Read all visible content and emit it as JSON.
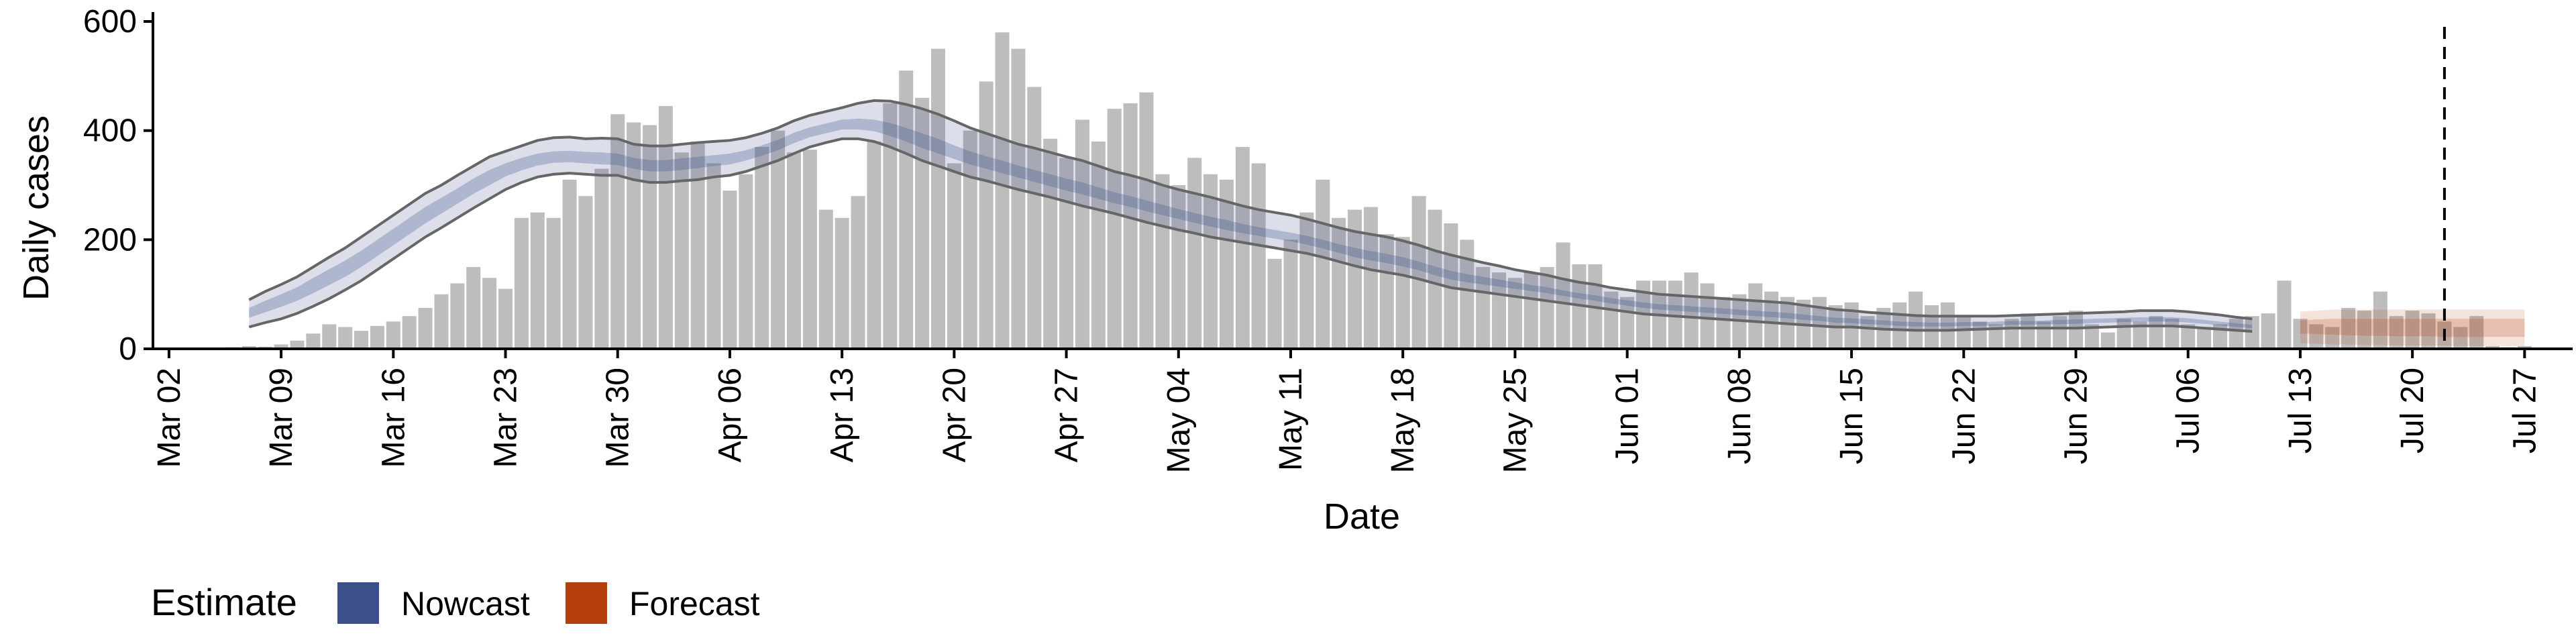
{
  "chart_data": {
    "type": "bar",
    "title": "",
    "xlabel": "Date",
    "ylabel": "Daily cases",
    "ylim": [
      0,
      600
    ],
    "yticks": [
      0,
      200,
      400,
      600
    ],
    "x_start": "2020-03-01",
    "x_end": "2020-07-30",
    "xticks": [
      {
        "date": "2020-03-02",
        "label": "Mar 02"
      },
      {
        "date": "2020-03-09",
        "label": "Mar 09"
      },
      {
        "date": "2020-03-16",
        "label": "Mar 16"
      },
      {
        "date": "2020-03-23",
        "label": "Mar 23"
      },
      {
        "date": "2020-03-30",
        "label": "Mar 30"
      },
      {
        "date": "2020-04-06",
        "label": "Apr 06"
      },
      {
        "date": "2020-04-13",
        "label": "Apr 13"
      },
      {
        "date": "2020-04-20",
        "label": "Apr 20"
      },
      {
        "date": "2020-04-27",
        "label": "Apr 27"
      },
      {
        "date": "2020-05-04",
        "label": "May 04"
      },
      {
        "date": "2020-05-11",
        "label": "May 11"
      },
      {
        "date": "2020-05-18",
        "label": "May 18"
      },
      {
        "date": "2020-05-25",
        "label": "May 25"
      },
      {
        "date": "2020-06-01",
        "label": "Jun 01"
      },
      {
        "date": "2020-06-08",
        "label": "Jun 08"
      },
      {
        "date": "2020-06-15",
        "label": "Jun 15"
      },
      {
        "date": "2020-06-22",
        "label": "Jun 22"
      },
      {
        "date": "2020-06-29",
        "label": "Jun 29"
      },
      {
        "date": "2020-07-06",
        "label": "Jul 06"
      },
      {
        "date": "2020-07-13",
        "label": "Jul 13"
      },
      {
        "date": "2020-07-20",
        "label": "Jul 20"
      },
      {
        "date": "2020-07-27",
        "label": "Jul 27"
      }
    ],
    "bars": {
      "first_date": "2020-03-04",
      "color": "#bdbdbd",
      "values": [
        2,
        1,
        3,
        5,
        4,
        8,
        15,
        28,
        45,
        40,
        33,
        42,
        50,
        60,
        75,
        100,
        120,
        150,
        130,
        110,
        240,
        250,
        240,
        310,
        280,
        330,
        430,
        415,
        410,
        445,
        360,
        380,
        340,
        290,
        320,
        370,
        400,
        360,
        365,
        255,
        240,
        280,
        380,
        450,
        510,
        460,
        550,
        340,
        400,
        490,
        580,
        550,
        480,
        385,
        350,
        420,
        380,
        440,
        450,
        470,
        320,
        300,
        350,
        320,
        310,
        370,
        340,
        165,
        200,
        250,
        310,
        240,
        255,
        260,
        210,
        205,
        280,
        255,
        230,
        200,
        150,
        140,
        130,
        140,
        150,
        195,
        155,
        155,
        105,
        95,
        125,
        125,
        125,
        140,
        120,
        95,
        100,
        120,
        105,
        95,
        90,
        95,
        80,
        85,
        60,
        75,
        85,
        105,
        80,
        85,
        60,
        50,
        45,
        55,
        65,
        50,
        60,
        70,
        45,
        30,
        55,
        50,
        60,
        55,
        45,
        40,
        45,
        55,
        60,
        65,
        125,
        55,
        45,
        40,
        75,
        70,
        105,
        60,
        70,
        65,
        50,
        40,
        60,
        5,
        3,
        5
      ]
    },
    "nowcast": {
      "name": "Nowcast",
      "color": "#3b5088",
      "start_date": "2020-03-07",
      "outer_upper": [
        90,
        105,
        118,
        132,
        150,
        168,
        185,
        205,
        225,
        245,
        265,
        285,
        300,
        318,
        335,
        352,
        362,
        372,
        382,
        387,
        388,
        385,
        386,
        385,
        375,
        372,
        372,
        375,
        378,
        380,
        382,
        387,
        395,
        405,
        418,
        428,
        435,
        442,
        450,
        455,
        454,
        448,
        440,
        430,
        418,
        405,
        395,
        385,
        375,
        368,
        360,
        352,
        345,
        335,
        325,
        318,
        310,
        300,
        292,
        285,
        278,
        270,
        262,
        255,
        250,
        245,
        238,
        230,
        222,
        215,
        210,
        205,
        198,
        190,
        180,
        172,
        165,
        158,
        152,
        145,
        140,
        135,
        128,
        122,
        118,
        112,
        108,
        104,
        100,
        98,
        96,
        94,
        92,
        90,
        88,
        86,
        84,
        80,
        76,
        72,
        70,
        67,
        65,
        63,
        61,
        60,
        60,
        60,
        60,
        60,
        61,
        62,
        63,
        64,
        65,
        66,
        67,
        68,
        70,
        70,
        70,
        68,
        65,
        62,
        58,
        55
      ],
      "outer_lower": [
        40,
        48,
        55,
        65,
        78,
        92,
        108,
        125,
        145,
        165,
        185,
        205,
        222,
        240,
        258,
        275,
        292,
        305,
        315,
        320,
        322,
        320,
        318,
        318,
        310,
        305,
        305,
        308,
        310,
        315,
        318,
        325,
        335,
        345,
        358,
        370,
        378,
        385,
        385,
        380,
        370,
        358,
        345,
        335,
        325,
        315,
        308,
        300,
        292,
        285,
        278,
        270,
        262,
        255,
        248,
        240,
        232,
        225,
        218,
        212,
        205,
        200,
        195,
        190,
        185,
        180,
        175,
        168,
        160,
        152,
        145,
        140,
        135,
        128,
        120,
        112,
        108,
        104,
        100,
        96,
        92,
        88,
        84,
        80,
        76,
        72,
        68,
        64,
        62,
        60,
        58,
        56,
        54,
        52,
        50,
        48,
        46,
        44,
        42,
        40,
        40,
        38,
        36,
        35,
        34,
        34,
        34,
        35,
        36,
        37,
        38,
        38,
        38,
        38,
        38,
        39,
        40,
        41,
        42,
        42,
        42,
        40,
        38,
        36,
        34,
        32
      ],
      "inner_upper": [
        75,
        88,
        100,
        113,
        130,
        146,
        162,
        180,
        200,
        220,
        240,
        260,
        277,
        294,
        312,
        328,
        340,
        350,
        358,
        362,
        363,
        361,
        360,
        358,
        350,
        346,
        346,
        349,
        352,
        355,
        358,
        364,
        373,
        383,
        396,
        406,
        413,
        420,
        422,
        420,
        414,
        405,
        395,
        385,
        373,
        362,
        353,
        345,
        336,
        328,
        320,
        312,
        305,
        296,
        287,
        280,
        272,
        264,
        256,
        249,
        242,
        236,
        229,
        223,
        218,
        213,
        207,
        200,
        192,
        185,
        179,
        174,
        168,
        160,
        151,
        143,
        137,
        132,
        127,
        122,
        117,
        113,
        107,
        102,
        98,
        93,
        89,
        85,
        82,
        80,
        78,
        76,
        74,
        72,
        70,
        68,
        66,
        63,
        60,
        57,
        56,
        54,
        52,
        50,
        49,
        48,
        48,
        49,
        49,
        50,
        51,
        51,
        52,
        53,
        54,
        55,
        56,
        57,
        58,
        58,
        58,
        56,
        53,
        50,
        47,
        44
      ],
      "inner_lower": [
        57,
        67,
        77,
        88,
        102,
        117,
        132,
        150,
        170,
        190,
        210,
        230,
        248,
        266,
        284,
        300,
        316,
        327,
        336,
        341,
        342,
        340,
        338,
        337,
        330,
        325,
        325,
        328,
        331,
        335,
        338,
        345,
        354,
        364,
        377,
        388,
        395,
        402,
        402,
        399,
        390,
        380,
        368,
        358,
        348,
        338,
        330,
        322,
        314,
        306,
        298,
        290,
        283,
        275,
        267,
        260,
        252,
        245,
        238,
        231,
        224,
        218,
        212,
        207,
        202,
        197,
        191,
        184,
        176,
        168,
        162,
        157,
        151,
        144,
        135,
        127,
        122,
        118,
        114,
        110,
        106,
        102,
        97,
        92,
        88,
        83,
        79,
        75,
        72,
        70,
        68,
        66,
        64,
        62,
        60,
        58,
        56,
        53,
        51,
        48,
        47,
        45,
        44,
        42,
        41,
        41,
        41,
        42,
        42,
        43,
        44,
        44,
        45,
        45,
        46,
        47,
        48,
        49,
        50,
        50,
        50,
        48,
        46,
        43,
        40,
        38
      ],
      "line_upper": [
        90,
        105,
        118,
        132,
        150,
        168,
        185,
        205,
        225,
        245,
        265,
        285,
        300,
        318,
        335,
        352,
        362,
        372,
        382,
        387,
        388,
        385,
        386,
        385,
        375,
        372,
        372,
        375,
        378,
        380,
        382,
        387,
        395,
        405,
        418,
        428,
        435,
        442,
        450,
        455,
        454,
        448,
        440,
        430,
        418,
        405,
        395,
        385,
        375,
        368,
        360,
        352,
        345,
        335,
        325,
        318,
        310,
        300,
        292,
        285,
        278,
        270,
        262,
        255,
        250,
        245,
        238,
        230,
        222,
        215,
        210,
        205,
        198,
        190,
        180,
        172,
        165,
        158,
        152,
        145,
        140,
        135,
        128,
        122,
        118,
        112,
        108,
        104,
        100,
        98,
        96,
        94,
        92,
        90,
        88,
        86,
        84,
        80,
        76,
        72,
        70,
        67,
        65,
        63,
        61,
        60,
        60,
        60,
        60,
        60,
        61,
        62,
        63,
        64,
        65,
        66,
        67,
        68,
        70,
        70,
        70,
        68,
        65,
        62,
        58,
        55
      ],
      "line_lower": [
        40,
        48,
        55,
        65,
        78,
        92,
        108,
        125,
        145,
        165,
        185,
        205,
        222,
        240,
        258,
        275,
        292,
        305,
        315,
        320,
        322,
        320,
        318,
        318,
        310,
        305,
        305,
        308,
        310,
        315,
        318,
        325,
        335,
        345,
        358,
        370,
        378,
        385,
        385,
        380,
        370,
        358,
        345,
        335,
        325,
        315,
        308,
        300,
        292,
        285,
        278,
        270,
        262,
        255,
        248,
        240,
        232,
        225,
        218,
        212,
        205,
        200,
        195,
        190,
        185,
        180,
        175,
        168,
        160,
        152,
        145,
        140,
        135,
        128,
        120,
        112,
        108,
        104,
        100,
        96,
        92,
        88,
        84,
        80,
        76,
        72,
        68,
        64,
        62,
        60,
        58,
        56,
        54,
        52,
        50,
        48,
        46,
        44,
        42,
        40,
        40,
        38,
        36,
        35,
        34,
        34,
        34,
        35,
        36,
        37,
        38,
        38,
        38,
        38,
        38,
        39,
        40,
        41,
        42,
        42,
        42,
        40,
        38,
        36,
        34,
        32
      ]
    },
    "forecast": {
      "name": "Forecast",
      "color": "#b5400e",
      "start_date": "2020-07-13",
      "outer_upper": [
        68,
        70,
        72,
        72,
        72,
        72,
        72,
        72,
        72,
        72,
        72,
        72,
        72,
        72,
        72
      ],
      "outer_lower": [
        10,
        9,
        8,
        8,
        7,
        7,
        6,
        6,
        6,
        6,
        5,
        5,
        5,
        5,
        5
      ],
      "inner_upper": [
        52,
        54,
        55,
        55,
        55,
        55,
        55,
        55,
        55,
        55,
        55,
        55,
        55,
        55,
        55
      ],
      "inner_lower": [
        28,
        27,
        26,
        25,
        24,
        24,
        23,
        23,
        23,
        22,
        22,
        22,
        22,
        22,
        22
      ]
    },
    "vline": {
      "date": "2020-07-22",
      "style": "dashed"
    },
    "legend": {
      "title": "Estimate",
      "placement": "bottom-left",
      "entries": [
        {
          "label": "Nowcast",
          "color": "#3b5088"
        },
        {
          "label": "Forecast",
          "color": "#b5400e"
        }
      ]
    },
    "grid": false
  }
}
